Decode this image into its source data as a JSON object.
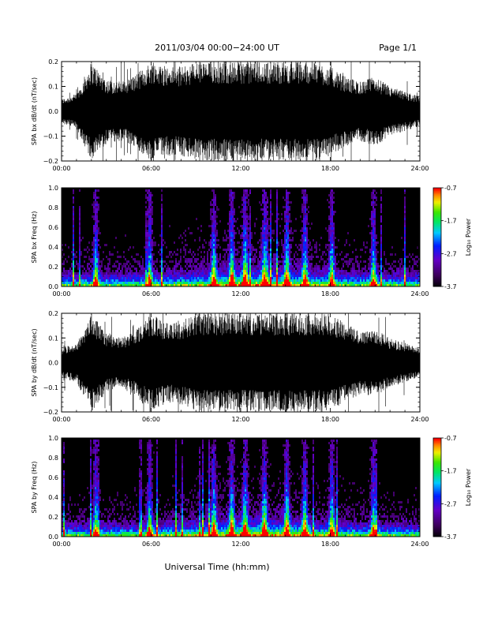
{
  "header": {
    "title": "2011/03/04  00:00−24:00 UT",
    "page": "Page 1/1"
  },
  "footer": {
    "xlabel": "Universal Time (hh:mm)"
  },
  "time_ticks": [
    "00:00",
    "06:00",
    "12:00",
    "18:00",
    "24:00"
  ],
  "colorbar": {
    "label": "Log₁₀ Power",
    "ticks": [
      "-0.7",
      "-1.7",
      "-2.7",
      "-3.7"
    ],
    "range": [
      -3.7,
      -0.7
    ],
    "colormap": "rainbow: black → purple → blue → cyan → green → yellow → red"
  },
  "chart_data": [
    {
      "type": "line",
      "panel": "bx-waveform",
      "ylabel": "SPA bx dB/dt (nT/sec)",
      "xlim_hours": [
        0,
        24
      ],
      "ylim": [
        -0.2,
        0.2
      ],
      "yticks": [
        "0.2",
        "0.1",
        "0.0",
        "−0.1",
        "−0.2"
      ],
      "envelope": {
        "hour": [
          0,
          1,
          2,
          3,
          4,
          5,
          6,
          7,
          8,
          9,
          10,
          11,
          12,
          13,
          14,
          15,
          16,
          17,
          18,
          19,
          20,
          21,
          22,
          23,
          24
        ],
        "amplitude": [
          0.05,
          0.07,
          0.2,
          0.13,
          0.12,
          0.15,
          0.2,
          0.18,
          0.18,
          0.2,
          0.2,
          0.2,
          0.2,
          0.2,
          0.2,
          0.2,
          0.2,
          0.2,
          0.18,
          0.14,
          0.12,
          0.14,
          0.1,
          0.08,
          0.06
        ]
      }
    },
    {
      "type": "heatmap",
      "panel": "bx-spectrogram",
      "ylabel": "SPA bx Freq (Hz)",
      "xlim_hours": [
        0,
        24
      ],
      "ylim": [
        0.0,
        1.0
      ],
      "yticks": [
        "1.0",
        "0.8",
        "0.6",
        "0.4",
        "0.2",
        "0.0"
      ],
      "zlim": [
        -3.7,
        -0.7
      ],
      "bursts_hour": [
        2.3,
        5.9,
        10.2,
        11.4,
        12.3,
        13.6,
        15.1,
        16.3,
        18.1,
        20.9
      ]
    },
    {
      "type": "line",
      "panel": "by-waveform",
      "ylabel": "SPA by dB/dt (nT/sec)",
      "xlim_hours": [
        0,
        24
      ],
      "ylim": [
        -0.2,
        0.2
      ],
      "yticks": [
        "0.2",
        "0.1",
        "0.0",
        "−0.1",
        "−0.2"
      ],
      "envelope": {
        "hour": [
          0,
          1,
          2,
          3,
          4,
          5,
          6,
          7,
          8,
          9,
          10,
          11,
          12,
          13,
          14,
          15,
          16,
          17,
          18,
          19,
          20,
          21,
          22,
          23,
          24
        ],
        "amplitude": [
          0.06,
          0.08,
          0.2,
          0.12,
          0.1,
          0.14,
          0.2,
          0.16,
          0.17,
          0.2,
          0.2,
          0.2,
          0.2,
          0.2,
          0.2,
          0.2,
          0.2,
          0.2,
          0.2,
          0.16,
          0.13,
          0.14,
          0.1,
          0.08,
          0.06
        ]
      }
    },
    {
      "type": "heatmap",
      "panel": "by-spectrogram",
      "ylabel": "SPA by Freq (Hz)",
      "xlim_hours": [
        0,
        24
      ],
      "ylim": [
        0.0,
        1.0
      ],
      "yticks": [
        "1.0",
        "0.8",
        "0.6",
        "0.4",
        "0.2",
        "0.0"
      ],
      "zlim": [
        -3.7,
        -0.7
      ],
      "bursts_hour": [
        2.3,
        5.9,
        10.2,
        11.4,
        12.3,
        13.6,
        15.1,
        16.3,
        18.1,
        20.9
      ]
    }
  ]
}
